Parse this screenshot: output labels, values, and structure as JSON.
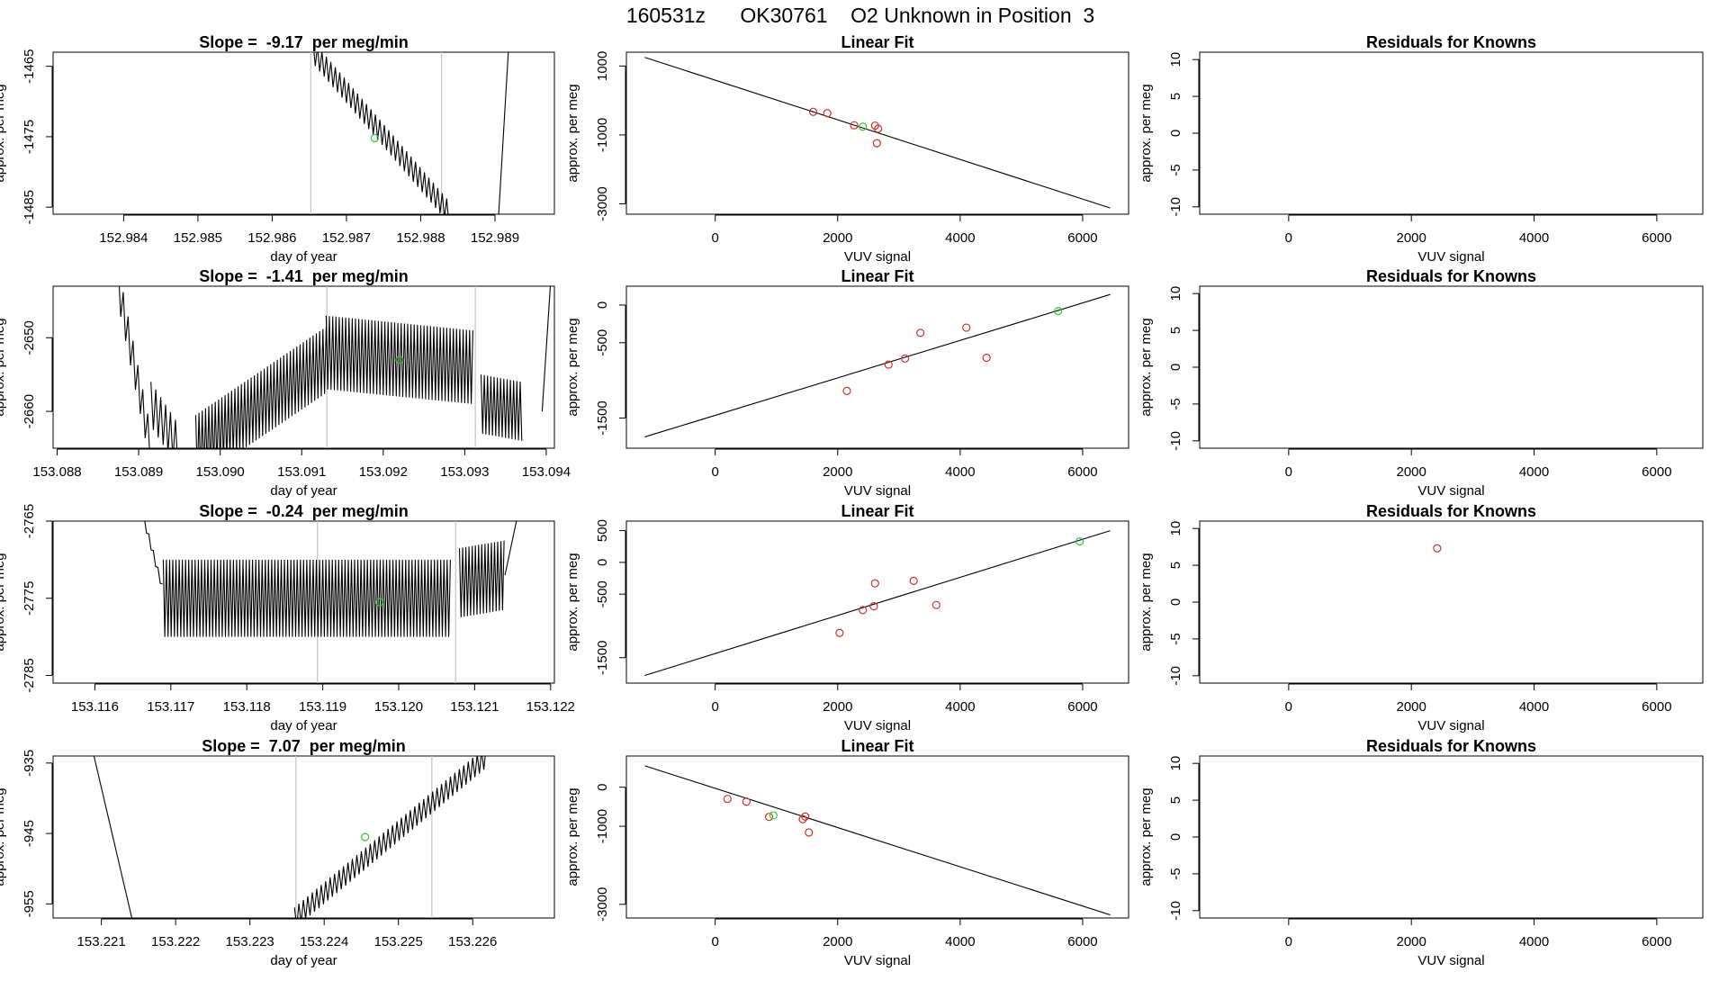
{
  "page_title": "160531z      OK30761    O2 Unknown in Position  3",
  "colors": {
    "trace": "#000000",
    "known": "#d2302a",
    "unknown": "#2ec82e",
    "vline": "#c8c8c8",
    "axis": "#000000"
  },
  "chart_data": [
    {
      "type": "line",
      "row": 1,
      "column": "slope",
      "title": "Slope =  -9.17  per meg/min",
      "xlabel": "day of year",
      "ylabel": "approx. per meg",
      "xlim": [
        152.98305,
        152.9898
      ],
      "ylim": [
        -1486,
        -1463
      ],
      "xticks": [
        152.984,
        152.985,
        152.986,
        152.987,
        152.988,
        152.989
      ],
      "xtick_labels": [
        "152.984",
        "152.985",
        "152.986",
        "152.987",
        "152.988",
        "152.989"
      ],
      "yticks": [
        -1485,
        -1475,
        -1465
      ],
      "ytick_labels": [
        "-1485",
        "-1475",
        "-1465"
      ],
      "vlines": [
        152.98652,
        152.98828
      ],
      "trace": {
        "segments": [
          {
            "x0": 152.98655,
            "x1": 152.9884,
            "y0": -1463,
            "y1": -1486,
            "amp": 1.6,
            "period": 6e-05
          },
          {
            "x0": 152.98905,
            "x1": 152.98918,
            "y0": -1486,
            "y1": -1463,
            "amp": 0,
            "period": 0.0001
          }
        ]
      },
      "marker": {
        "x": 152.98738,
        "y": -1475.2
      }
    },
    {
      "type": "scatter",
      "row": 1,
      "column": "fit",
      "title": "Linear Fit",
      "xlabel": "VUV signal",
      "ylabel": "approx. per meg",
      "xlim": [
        -1450,
        6750
      ],
      "ylim": [
        -3300,
        1400
      ],
      "xticks": [
        0,
        2000,
        4000,
        6000
      ],
      "xtick_labels": [
        "0",
        "2000",
        "4000",
        "6000"
      ],
      "yticks": [
        -3000,
        -1000,
        1000
      ],
      "ytick_labels": [
        "-3000",
        "-1000",
        "1000"
      ],
      "fit_line": {
        "x": [
          -1150,
          6450
        ],
        "y": [
          1250,
          -3120
        ]
      },
      "known_points": [
        {
          "x": 1600,
          "y": -330
        },
        {
          "x": 1830,
          "y": -370
        },
        {
          "x": 2270,
          "y": -720
        },
        {
          "x": 2610,
          "y": -730
        },
        {
          "x": 2660,
          "y": -820
        },
        {
          "x": 2640,
          "y": -1240
        }
      ],
      "unknown_points": [
        {
          "x": 2410,
          "y": -760
        }
      ]
    },
    {
      "type": "scatter",
      "row": 1,
      "column": "residuals",
      "title": "Residuals for Knowns",
      "xlabel": "VUV signal",
      "ylabel": "approx. per meg",
      "xlim": [
        -1450,
        6750
      ],
      "ylim": [
        -11,
        11
      ],
      "xticks": [
        0,
        2000,
        4000,
        6000
      ],
      "xtick_labels": [
        "0",
        "2000",
        "4000",
        "6000"
      ],
      "yticks": [
        -10,
        -5,
        0,
        5,
        10
      ],
      "ytick_labels": [
        "-10",
        "-5",
        "0",
        "5",
        "10"
      ],
      "known_points": []
    },
    {
      "type": "line",
      "row": 2,
      "column": "slope",
      "title": "Slope =  -1.41  per meg/min",
      "xlabel": "day of year",
      "ylabel": "approx. per meg",
      "xlim": [
        153.08795,
        153.0941
      ],
      "ylim": [
        -2665,
        -2643
      ],
      "xticks": [
        153.088,
        153.089,
        153.09,
        153.091,
        153.092,
        153.093,
        153.094
      ],
      "xtick_labels": [
        "153.088",
        "153.089",
        "153.090",
        "153.091",
        "153.092",
        "153.093",
        "153.094"
      ],
      "yticks": [
        -2660,
        -2650
      ],
      "ytick_labels": [
        "-2660",
        "-2650"
      ],
      "vlines": [
        153.09131,
        153.09313
      ],
      "trace": {
        "segments": [
          {
            "x0": 153.08875,
            "x1": 153.08915,
            "y0": -2643,
            "y1": -2665,
            "amp": 2.5,
            "period": 6e-05
          },
          {
            "x0": 153.08915,
            "x1": 153.0895,
            "y0": -2659,
            "y1": -2665,
            "amp": 3.0,
            "period": 6e-05
          },
          {
            "x0": 153.0897,
            "x1": 153.0913,
            "y0": -2665,
            "y1": -2653,
            "amp": 4.5,
            "period": 4e-05
          },
          {
            "x0": 153.0913,
            "x1": 153.0931,
            "y0": -2652,
            "y1": -2654,
            "amp": 5.0,
            "period": 4e-05
          },
          {
            "x0": 153.0932,
            "x1": 153.0937,
            "y0": -2659,
            "y1": -2660,
            "amp": 4.0,
            "period": 4e-05
          },
          {
            "x0": 153.09395,
            "x1": 153.09405,
            "y0": -2660,
            "y1": -2643,
            "amp": 0,
            "period": 0.0001
          }
        ]
      },
      "marker": {
        "x": 153.0922,
        "y": -2653
      }
    },
    {
      "type": "scatter",
      "row": 2,
      "column": "fit",
      "title": "Linear Fit",
      "xlabel": "VUV signal",
      "ylabel": "approx. per meg",
      "xlim": [
        -1450,
        6750
      ],
      "ylim": [
        -1900,
        250
      ],
      "xticks": [
        0,
        2000,
        4000,
        6000
      ],
      "xtick_labels": [
        "0",
        "2000",
        "4000",
        "6000"
      ],
      "yticks": [
        -1500,
        -500,
        0
      ],
      "ytick_labels": [
        "-1500",
        "-500",
        "0"
      ],
      "fit_line": {
        "x": [
          -1150,
          6450
        ],
        "y": [
          -1750,
          140
        ]
      },
      "known_points": [
        {
          "x": 2150,
          "y": -1140
        },
        {
          "x": 2830,
          "y": -790
        },
        {
          "x": 3100,
          "y": -710
        },
        {
          "x": 3350,
          "y": -370
        },
        {
          "x": 4100,
          "y": -300
        },
        {
          "x": 4430,
          "y": -700
        }
      ],
      "unknown_points": [
        {
          "x": 5600,
          "y": -80
        }
      ]
    },
    {
      "type": "scatter",
      "row": 2,
      "column": "residuals",
      "title": "Residuals for Knowns",
      "xlabel": "VUV signal",
      "ylabel": "approx. per meg",
      "xlim": [
        -1450,
        6750
      ],
      "ylim": [
        -11,
        11
      ],
      "xticks": [
        0,
        2000,
        4000,
        6000
      ],
      "xtick_labels": [
        "0",
        "2000",
        "4000",
        "6000"
      ],
      "yticks": [
        -10,
        -5,
        0,
        5,
        10
      ],
      "ytick_labels": [
        "-10",
        "-5",
        "0",
        "5",
        "10"
      ],
      "known_points": []
    },
    {
      "type": "line",
      "row": 3,
      "column": "slope",
      "title": "Slope =  -0.24  per meg/min",
      "xlabel": "day of year",
      "ylabel": "approx. per meg",
      "xlim": [
        153.11545,
        153.12205
      ],
      "ylim": [
        -2786,
        -2765
      ],
      "xticks": [
        153.116,
        153.117,
        153.118,
        153.119,
        153.12,
        153.121,
        153.122
      ],
      "xtick_labels": [
        "153.116",
        "153.117",
        "153.118",
        "153.119",
        "153.120",
        "153.121",
        "153.122"
      ],
      "yticks": [
        -2785,
        -2775,
        -2765
      ],
      "ytick_labels": [
        "-2785",
        "-2775",
        "-2765"
      ],
      "vlines": [
        153.11893,
        153.12075
      ],
      "trace": {
        "segments": [
          {
            "x0": 153.11665,
            "x1": 153.1169,
            "y0": -2765,
            "y1": -2774,
            "amp": 0.5,
            "period": 6e-05
          },
          {
            "x0": 153.1169,
            "x1": 153.1207,
            "y0": -2775,
            "y1": -2775,
            "amp": 5.0,
            "period": 4.2e-05
          },
          {
            "x0": 153.1208,
            "x1": 153.1214,
            "y0": -2773,
            "y1": -2772,
            "amp": 4.5,
            "period": 4.2e-05
          },
          {
            "x0": 153.1214,
            "x1": 153.12155,
            "y0": -2772,
            "y1": -2765,
            "amp": 0,
            "period": 0.0001
          }
        ]
      },
      "marker": {
        "x": 153.11975,
        "y": -2775.5
      }
    },
    {
      "type": "scatter",
      "row": 3,
      "column": "fit",
      "title": "Linear Fit",
      "xlabel": "VUV signal",
      "ylabel": "approx. per meg",
      "xlim": [
        -1450,
        6750
      ],
      "ylim": [
        -1900,
        650
      ],
      "xticks": [
        0,
        2000,
        4000,
        6000
      ],
      "xtick_labels": [
        "0",
        "2000",
        "4000",
        "6000"
      ],
      "yticks": [
        -1500,
        -500,
        0,
        500
      ],
      "ytick_labels": [
        "-1500",
        "-500",
        "0",
        "500"
      ],
      "fit_line": {
        "x": [
          -1150,
          6450
        ],
        "y": [
          -1780,
          500
        ]
      },
      "known_points": [
        {
          "x": 2030,
          "y": -1110
        },
        {
          "x": 2410,
          "y": -750
        },
        {
          "x": 2590,
          "y": -690
        },
        {
          "x": 2610,
          "y": -330
        },
        {
          "x": 3240,
          "y": -290
        },
        {
          "x": 3610,
          "y": -670
        }
      ],
      "unknown_points": [
        {
          "x": 5950,
          "y": 330
        }
      ]
    },
    {
      "type": "scatter",
      "row": 3,
      "column": "residuals",
      "title": "Residuals for Knowns",
      "xlabel": "VUV signal",
      "ylabel": "approx. per meg",
      "xlim": [
        -1450,
        6750
      ],
      "ylim": [
        -11,
        11
      ],
      "xticks": [
        0,
        2000,
        4000,
        6000
      ],
      "xtick_labels": [
        "0",
        "2000",
        "4000",
        "6000"
      ],
      "yticks": [
        -10,
        -5,
        0,
        5,
        10
      ],
      "ytick_labels": [
        "-10",
        "-5",
        "0",
        "5",
        "10"
      ],
      "known_points": [
        {
          "x": 2420,
          "y": 7.3
        }
      ]
    },
    {
      "type": "line",
      "row": 4,
      "column": "slope",
      "title": "Slope =  7.07  per meg/min",
      "xlabel": "day of year",
      "ylabel": "approx. per meg",
      "xlim": [
        153.22035,
        153.2271
      ],
      "ylim": [
        -957,
        -934
      ],
      "xticks": [
        153.221,
        153.222,
        153.223,
        153.224,
        153.225,
        153.226
      ],
      "xtick_labels": [
        "153.221",
        "153.222",
        "153.223",
        "153.224",
        "153.225",
        "153.226"
      ],
      "yticks": [
        -955,
        -945,
        -935
      ],
      "ytick_labels": [
        "-955",
        "-945",
        "-935"
      ],
      "vlines": [
        153.22362,
        153.22545
      ],
      "trace": {
        "segments": [
          {
            "x0": 153.2209,
            "x1": 153.22141,
            "y0": -934,
            "y1": -957,
            "amp": 0,
            "period": 0.0001
          },
          {
            "x0": 153.2236,
            "x1": 153.2262,
            "y0": -957,
            "y1": -934,
            "amp": 1.5,
            "period": 6e-05
          }
        ]
      },
      "marker": {
        "x": 153.22455,
        "y": -945.5
      }
    },
    {
      "type": "scatter",
      "row": 4,
      "column": "fit",
      "title": "Linear Fit",
      "xlabel": "VUV signal",
      "ylabel": "approx. per meg",
      "xlim": [
        -1450,
        6750
      ],
      "ylim": [
        -3350,
        800
      ],
      "xticks": [
        0,
        2000,
        4000,
        6000
      ],
      "xtick_labels": [
        "0",
        "2000",
        "4000",
        "6000"
      ],
      "yticks": [
        -3000,
        -1000,
        0
      ],
      "ytick_labels": [
        "-3000",
        "-1000",
        "0"
      ],
      "fit_line": {
        "x": [
          -1150,
          6450
        ],
        "y": [
          550,
          -3270
        ]
      },
      "known_points": [
        {
          "x": 200,
          "y": -300
        },
        {
          "x": 510,
          "y": -370
        },
        {
          "x": 880,
          "y": -760
        },
        {
          "x": 1430,
          "y": -820
        },
        {
          "x": 1470,
          "y": -750
        },
        {
          "x": 1530,
          "y": -1160
        }
      ],
      "unknown_points": [
        {
          "x": 950,
          "y": -720
        }
      ]
    },
    {
      "type": "scatter",
      "row": 4,
      "column": "residuals",
      "title": "Residuals for Knowns",
      "xlabel": "VUV signal",
      "ylabel": "approx. per meg",
      "xlim": [
        -1450,
        6750
      ],
      "ylim": [
        -11,
        11
      ],
      "xticks": [
        0,
        2000,
        4000,
        6000
      ],
      "xtick_labels": [
        "0",
        "2000",
        "4000",
        "6000"
      ],
      "yticks": [
        -10,
        -5,
        0,
        5,
        10
      ],
      "ytick_labels": [
        "-10",
        "-5",
        "0",
        "5",
        "10"
      ],
      "known_points": []
    }
  ]
}
